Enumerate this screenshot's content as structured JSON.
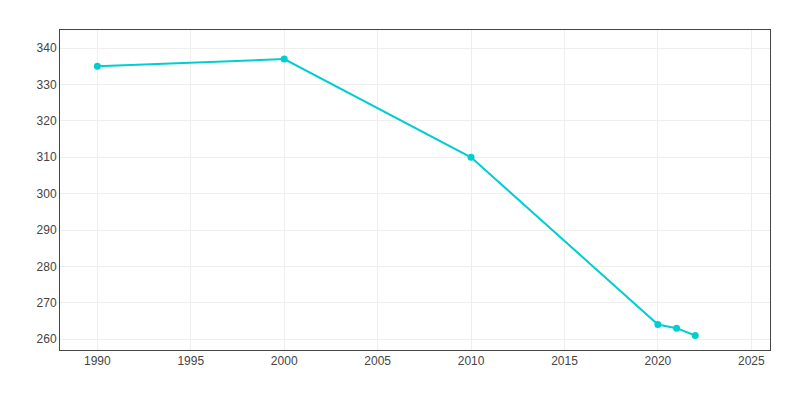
{
  "chart_data": {
    "type": "line",
    "x": [
      1990,
      2000,
      2010,
      2020,
      2021,
      2022
    ],
    "values": [
      335,
      337,
      310,
      264,
      263,
      261
    ],
    "color": "#00CED1",
    "marker": "circle",
    "xlim": [
      1988,
      2026
    ],
    "ylim": [
      257,
      345
    ],
    "xticks": [
      1990,
      1995,
      2000,
      2005,
      2010,
      2015,
      2020,
      2025
    ],
    "yticks": [
      260,
      270,
      280,
      290,
      300,
      310,
      320,
      330,
      340
    ],
    "grid": true
  }
}
